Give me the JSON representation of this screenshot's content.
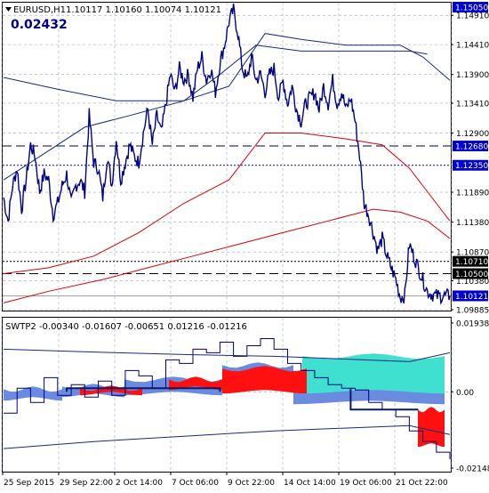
{
  "header": {
    "symbol": "EURUSD,H1",
    "ohlc": "1.10117 1.10160 1.10074 1.10121",
    "indicator_value": "0.02432"
  },
  "price_panel": {
    "y_ticks": [
      "1.14910",
      "1.14410",
      "1.13900",
      "1.13410",
      "1.12900",
      "1.11890",
      "1.11380",
      "1.10870",
      "1.10380",
      "1.09885"
    ],
    "badges": [
      {
        "label": "1.15050",
        "value": 1.1505,
        "bg": "#0000cc",
        "line": "none"
      },
      {
        "label": "1.12680",
        "value": 1.1268,
        "bg": "#0000cc",
        "line": "dashed"
      },
      {
        "label": "1.12350",
        "value": 1.1235,
        "bg": "#0000cc",
        "line": "dotted"
      },
      {
        "label": "1.10710",
        "value": 1.1071,
        "bg": "#000000",
        "line": "dotted"
      },
      {
        "label": "1.10500",
        "value": 1.105,
        "bg": "#000000",
        "line": "dashed"
      },
      {
        "label": "1.10121",
        "value": 1.10121,
        "bg": "#0000cc",
        "line": "solid-gray"
      }
    ]
  },
  "indicator_panel": {
    "title": "SWTP2 -0.00340 -0.01607 -0.00651 0.01216 -0.01216",
    "y_ticks": [
      "0.01938",
      "0.00",
      "-0.02148"
    ]
  },
  "x_axis": {
    "labels": [
      "25 Sep 2015",
      "29 Sep 22:00",
      "2 Oct 14:00",
      "7 Oct 06:00",
      "9 Oct 22:00",
      "14 Oct 14:00",
      "19 Oct 06:00",
      "21 Oct 22:00"
    ]
  },
  "chart_data": {
    "type": "line",
    "price_range": [
      1.09885,
      1.1505
    ],
    "price_series": {
      "name": "EURUSD,H1",
      "x": [
        0,
        1,
        2,
        3,
        4,
        5,
        6,
        7,
        8,
        9,
        10,
        11,
        12,
        13,
        14,
        15,
        16,
        17,
        18,
        19,
        20,
        21,
        22,
        23,
        24,
        25,
        26,
        27,
        28,
        29,
        30,
        31,
        32,
        33,
        34,
        35,
        36,
        37,
        38,
        39,
        40,
        41,
        42,
        43,
        44,
        45,
        46,
        47,
        48,
        49,
        50,
        51,
        52,
        53,
        54,
        55,
        56,
        57,
        58,
        59,
        60,
        61,
        62,
        63,
        64,
        65,
        66,
        67,
        68,
        69,
        70,
        71,
        72,
        73,
        74,
        75,
        76,
        77,
        78,
        79,
        80,
        81,
        82,
        83,
        84,
        85,
        86,
        87,
        88,
        89,
        90,
        91,
        92,
        93,
        94,
        95,
        96,
        97,
        98,
        99
      ],
      "values": [
        1.118,
        1.114,
        1.12,
        1.123,
        1.116,
        1.121,
        1.127,
        1.125,
        1.119,
        1.122,
        1.121,
        1.115,
        1.117,
        1.12,
        1.122,
        1.117,
        1.12,
        1.121,
        1.119,
        1.132,
        1.124,
        1.123,
        1.118,
        1.125,
        1.12,
        1.128,
        1.121,
        1.124,
        1.127,
        1.125,
        1.124,
        1.129,
        1.133,
        1.127,
        1.132,
        1.129,
        1.134,
        1.139,
        1.136,
        1.14,
        1.138,
        1.139,
        1.135,
        1.14,
        1.142,
        1.138,
        1.14,
        1.136,
        1.141,
        1.144,
        1.148,
        1.15,
        1.146,
        1.14,
        1.138,
        1.142,
        1.138,
        1.139,
        1.136,
        1.139,
        1.14,
        1.135,
        1.138,
        1.134,
        1.137,
        1.133,
        1.131,
        1.134,
        1.135,
        1.136,
        1.133,
        1.137,
        1.134,
        1.138,
        1.134,
        1.136,
        1.133,
        1.135,
        1.131,
        1.125,
        1.117,
        1.115,
        1.112,
        1.109,
        1.111,
        1.108,
        1.106,
        1.104,
        1.101,
        1.1012,
        1.11,
        1.108,
        1.106,
        1.104,
        1.102,
        1.1015,
        1.1012,
        1.1012,
        1.1012,
        1.1012
      ]
    },
    "envelopes": {
      "outer_upper_blue": [
        [
          0,
          1.1385
        ],
        [
          12,
          1.1365
        ],
        [
          25,
          1.1345
        ],
        [
          40,
          1.1345
        ],
        [
          50,
          1.137
        ],
        [
          58,
          1.146
        ],
        [
          66,
          1.145
        ],
        [
          76,
          1.144
        ],
        [
          88,
          1.144
        ],
        [
          93,
          1.142
        ],
        [
          99,
          1.138
        ]
      ],
      "inner_upper_blue": [
        [
          0,
          1.121
        ],
        [
          8,
          1.125
        ],
        [
          18,
          1.13
        ],
        [
          28,
          1.132
        ],
        [
          40,
          1.1345
        ],
        [
          48,
          1.139
        ],
        [
          56,
          1.144
        ],
        [
          66,
          1.143
        ],
        [
          80,
          1.143
        ],
        [
          90,
          1.143
        ],
        [
          94,
          1.1425
        ]
      ],
      "upper_red": [
        [
          0,
          1.105
        ],
        [
          10,
          1.106
        ],
        [
          20,
          1.108
        ],
        [
          30,
          1.112
        ],
        [
          40,
          1.117
        ],
        [
          50,
          1.121
        ],
        [
          58,
          1.129
        ],
        [
          66,
          1.129
        ],
        [
          76,
          1.128
        ],
        [
          84,
          1.127
        ],
        [
          90,
          1.123
        ],
        [
          96,
          1.117
        ],
        [
          99,
          1.114
        ]
      ],
      "lower_red": [
        [
          0,
          1.1
        ],
        [
          10,
          1.102
        ],
        [
          22,
          1.104
        ],
        [
          32,
          1.106
        ],
        [
          42,
          1.108
        ],
        [
          52,
          1.11
        ],
        [
          62,
          1.112
        ],
        [
          72,
          1.114
        ],
        [
          82,
          1.116
        ],
        [
          88,
          1.1155
        ],
        [
          94,
          1.114
        ],
        [
          99,
          1.111
        ]
      ]
    },
    "indicator_range": [
      -0.02148,
      0.01938
    ],
    "indicator_series": {
      "x": [
        0,
        3,
        6,
        9,
        12,
        15,
        18,
        21,
        24,
        27,
        30,
        33,
        36,
        39,
        42,
        45,
        48,
        51,
        54,
        57,
        60,
        63,
        66,
        69,
        72,
        75,
        78,
        81,
        84,
        87,
        90,
        93,
        96,
        99
      ],
      "values": [
        -0.006,
        0.001,
        -0.003,
        0.004,
        -0.001,
        0.002,
        -0.0015,
        0.003,
        -0.001,
        0.006,
        0.0045,
        0.001,
        0.009,
        0.008,
        0.012,
        0.011,
        0.014,
        0.01,
        0.013,
        0.015,
        0.012,
        0.008,
        0.006,
        0.004,
        0.002,
        0.001,
        0.0005,
        -0.003,
        -0.005,
        -0.007,
        -0.011,
        -0.014,
        -0.017,
        -0.019
      ]
    }
  }
}
